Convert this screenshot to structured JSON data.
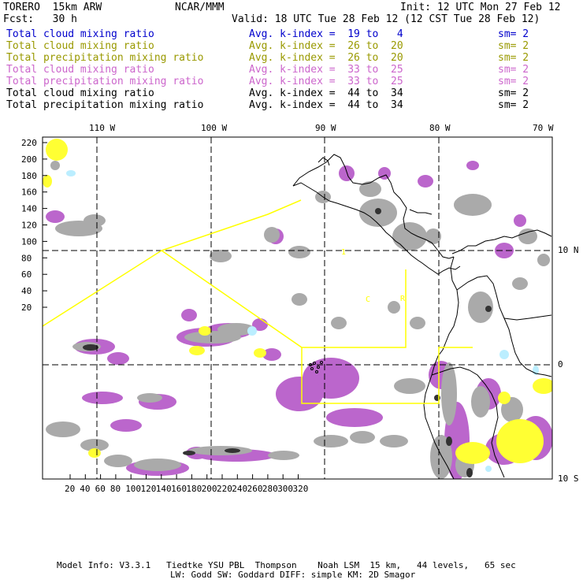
{
  "header": {
    "model": "TORERO  15km ARW",
    "center": "NCAR/MMM",
    "init": "Init: 12 UTC Mon 27 Feb 12",
    "fcst": "Fcst:   30 h",
    "valid": "Valid: 18 UTC Tue 28 Feb 12 (12 CST Tue 28 Feb 12)"
  },
  "legend": [
    {
      "field": "Total cloud mixing ratio",
      "index": "Avg. k-index =  19 to   4",
      "sm": "sm= 2",
      "color": "#0000cc"
    },
    {
      "field": "Total cloud mixing ratio",
      "index": "Avg. k-index =  26 to  20",
      "sm": "sm= 2",
      "color": "#999900"
    },
    {
      "field": "Total precipitation mixing ratio",
      "index": "Avg. k-index =  26 to  20",
      "sm": "sm= 2",
      "color": "#999900"
    },
    {
      "field": "Total cloud mixing ratio",
      "index": "Avg. k-index =  33 to  25",
      "sm": "sm= 2",
      "color": "#cc66cc"
    },
    {
      "field": "Total precipitation mixing ratio",
      "index": "Avg. k-index =  33 to  25",
      "sm": "sm= 2",
      "color": "#cc66cc"
    },
    {
      "field": "Total cloud mixing ratio",
      "index": "Avg. k-index =  44 to  34",
      "sm": "sm= 2",
      "color": "#000000"
    },
    {
      "field": "Total precipitation mixing ratio",
      "index": "Avg. k-index =  44 to  34",
      "sm": "sm= 2",
      "color": "#000000"
    }
  ],
  "map": {
    "lon_labels": [
      "110 W",
      "100 W",
      "90 W",
      "80 W",
      "70 W"
    ],
    "lat_labels": [
      "10 N",
      "0",
      "10 S"
    ],
    "y_ticks": [
      "220",
      "200",
      "180",
      "160",
      "140",
      "120",
      "100",
      "80",
      "60",
      "40",
      "20"
    ],
    "x_ticks": [
      "20",
      "40",
      "60",
      "80",
      "100",
      "120",
      "140",
      "160",
      "180",
      "200",
      "220",
      "240",
      "260",
      "280",
      "300",
      "320"
    ],
    "domain_color": "#ffff00",
    "colors": {
      "gray": "#aaaaaa",
      "purple": "#bb66cc",
      "yellow": "#ffff33",
      "dark": "#333333",
      "cyan": "#bbeeff"
    }
  },
  "footer": {
    "line1": "Model Info: V3.3.1   Tiedtke YSU PBL  Thompson    Noah LSM  15 km,   44 levels,   65 sec",
    "line2": "LW: Godd SW: Goddard DIFF: simple KM: 2D Smagor"
  }
}
